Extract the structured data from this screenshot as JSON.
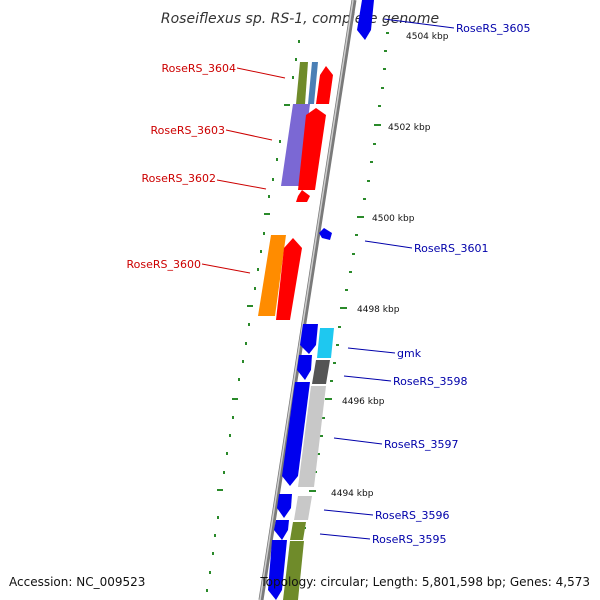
{
  "title": "Roseiflexus sp. RS-1, complete genome",
  "footer": {
    "accession": "Accession: NC_009523",
    "topology": "Topology: circular; Length: 5,801,598 bp; Genes: 4,573"
  },
  "scale_labels": [
    "4504 kbp",
    "4502 kbp",
    "4500 kbp",
    "4498 kbp",
    "4496 kbp",
    "4494 kbp"
  ],
  "reverse_gene_labels": [
    "RoseRS_3604",
    "RoseRS_3603",
    "RoseRS_3602",
    "RoseRS_3600"
  ],
  "forward_gene_labels": [
    "RoseRS_3605",
    "RoseRS_3601",
    "gmk",
    "RoseRS_3598",
    "RoseRS_3597",
    "RoseRS_3596",
    "RoseRS_3595"
  ],
  "colors": {
    "reverse_label": "#cc0000",
    "forward_label": "#0000aa",
    "reverse_gene": "#ff0000",
    "forward_gene": "#0000ee",
    "tick": "#2a8a2a",
    "backbone": "#888888"
  }
}
